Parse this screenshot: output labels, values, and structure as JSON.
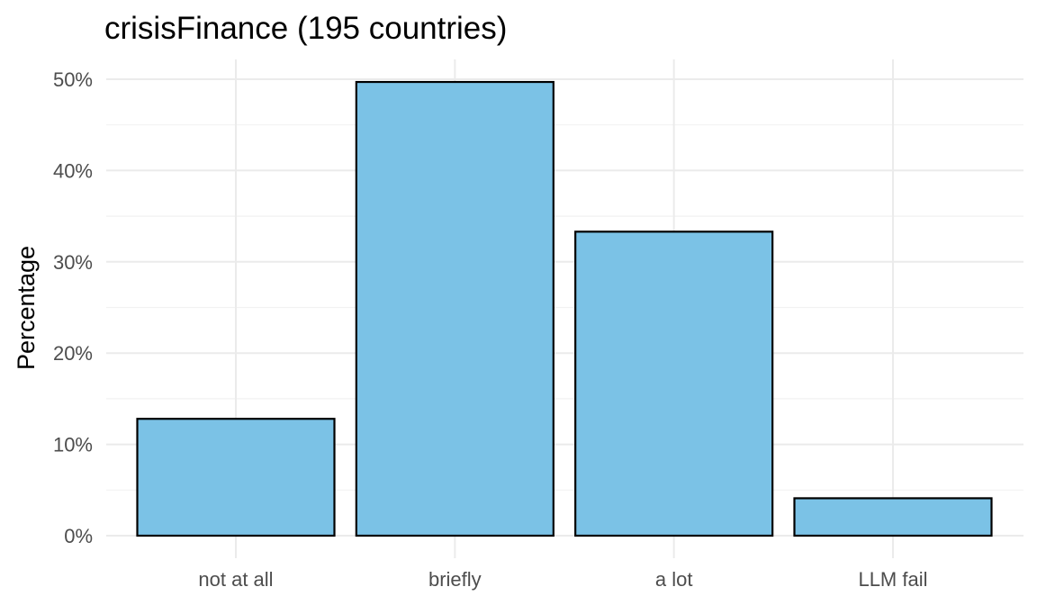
{
  "chart_data": {
    "type": "bar",
    "title": "crisisFinance (195 countries)",
    "xlabel": "",
    "ylabel": "Percentage",
    "categories": [
      "not at all",
      "briefly",
      "a lot",
      "LLM fail"
    ],
    "values": [
      12.8,
      49.7,
      33.3,
      4.1
    ],
    "value_unit": "percent",
    "ylim": [
      0,
      51.5
    ],
    "yticks": [
      0,
      10,
      20,
      30,
      40,
      50
    ],
    "ytick_labels": [
      "0%",
      "10%",
      "20%",
      "30%",
      "40%",
      "50%"
    ],
    "grid": true,
    "legend": "none",
    "bar_color": "#7BC2E6",
    "bar_edge_color": "#000000"
  }
}
